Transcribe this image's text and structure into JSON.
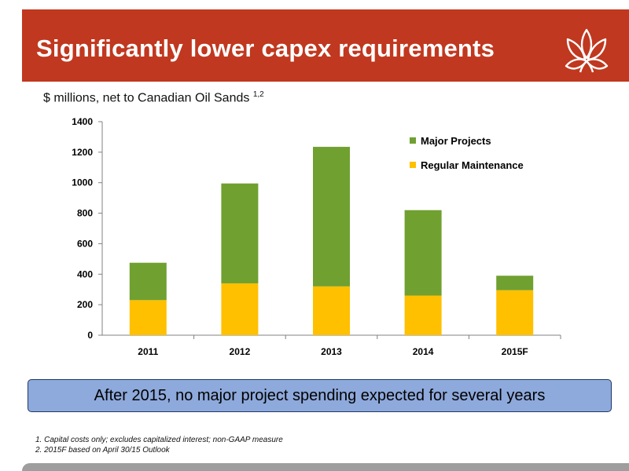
{
  "header": {
    "title": "Significantly lower capex requirements",
    "logo_icon": "lotus-logo-icon",
    "background_color": "#c0381f"
  },
  "subtitle": {
    "text": "$ millions, net to Canadian Oil Sands",
    "superscript": "1,2"
  },
  "chart_data": {
    "type": "bar",
    "stacked": true,
    "categories": [
      "2011",
      "2012",
      "2013",
      "2014",
      "2015F"
    ],
    "series": [
      {
        "name": "Regular Maintenance",
        "color": "#ffc000",
        "values": [
          230,
          340,
          320,
          260,
          295
        ]
      },
      {
        "name": "Major Projects",
        "color": "#70a030",
        "values": [
          245,
          655,
          915,
          560,
          95
        ]
      }
    ],
    "ylim": [
      0,
      1400
    ],
    "yticks": [
      0,
      200,
      400,
      600,
      800,
      1000,
      1200,
      1400
    ],
    "grid": false,
    "legend_position": "top-right",
    "legend_order": [
      "Major Projects",
      "Regular Maintenance"
    ]
  },
  "callout": {
    "text": "After 2015, no major project spending expected for several years"
  },
  "footnotes": [
    "1. Capital costs only; excludes capitalized interest; non-GAAP measure",
    "2. 2015F based on April 30/15 Outlook"
  ]
}
